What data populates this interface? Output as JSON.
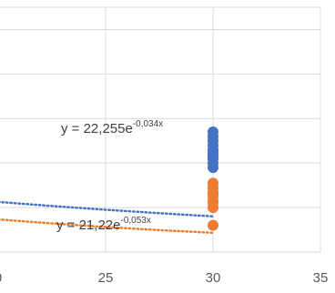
{
  "chart_data": {
    "type": "scatter",
    "x_tick_labels": [
      "0",
      "25",
      "30",
      "35"
    ],
    "xlim": [
      20,
      35
    ],
    "ylim": [
      0,
      55
    ],
    "grid": true,
    "series": [
      {
        "color": "#4472c4",
        "points": [
          [
            30,
            27.0
          ],
          [
            30,
            26.0
          ],
          [
            30,
            25.0
          ],
          [
            30,
            24.0
          ],
          [
            30,
            23.0
          ],
          [
            30,
            22.5
          ],
          [
            30,
            22.0
          ],
          [
            30,
            21.5
          ],
          [
            30,
            21.0
          ],
          [
            30,
            20.0
          ],
          [
            30,
            19.0
          ]
        ]
      },
      {
        "color": "#ed7d31",
        "points": [
          [
            30,
            15.5
          ],
          [
            30,
            14.5
          ],
          [
            30,
            13.5
          ],
          [
            30,
            13.0
          ],
          [
            30,
            12.5
          ],
          [
            30,
            11.5
          ],
          [
            30,
            11.0
          ],
          [
            30,
            10.0
          ],
          [
            30,
            6.0
          ]
        ]
      }
    ],
    "trendlines": [
      {
        "type": "exponential",
        "color": "#4472c4",
        "a": 22.255,
        "b": -0.034,
        "label_base": "y = 22,255e",
        "label_exponent": "-0,034x"
      },
      {
        "type": "exponential",
        "color": "#ed7d31",
        "a": 21.22,
        "b": -0.053,
        "label_base": "y = 21,22e",
        "label_exponent": "-0,053x"
      }
    ]
  }
}
